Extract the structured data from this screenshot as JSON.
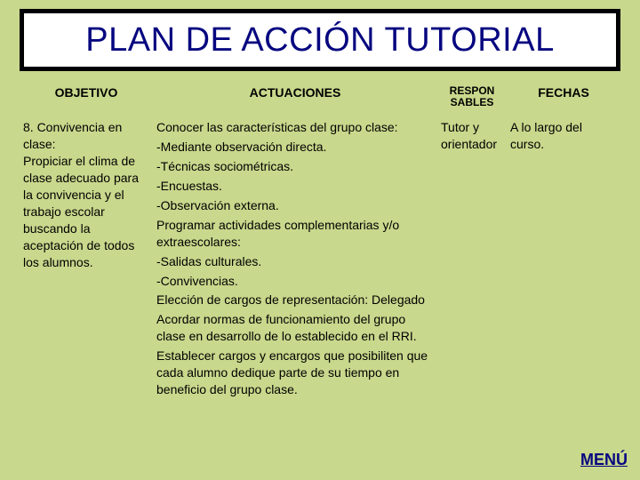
{
  "colors": {
    "background": "#c8d88c",
    "title_color": "#060680",
    "title_border": "#000000",
    "title_bg": "#ffffff",
    "text_color": "#000000",
    "link_color": "#060680"
  },
  "title": "PLAN DE ACCIÓN TUTORIAL",
  "headers": {
    "objetivo": "OBJETIVO",
    "actuaciones": "ACTUACIONES",
    "responsables_l1": "RESPON",
    "responsables_l2": "SABLES",
    "fechas": "FECHAS"
  },
  "row": {
    "objetivo": "8. Convivencia en clase:\nPropiciar el clima de clase adecuado para la convivencia y el trabajo escolar buscando la aceptación de todos los alumnos.",
    "actuaciones": [
      "Conocer las características del grupo clase:",
      "-Mediante observación directa.",
      "-Técnicas sociométricas.",
      "-Encuestas.",
      "-Observación externa.",
      "Programar actividades complementarias y/o extraescolares:",
      "-Salidas culturales.",
      "-Convivencias.",
      "Elección de cargos de representación: Delegado",
      "Acordar normas de funcionamiento del grupo clase en desarrollo de lo establecido en el RRI.",
      "Establecer cargos y encargos que posibiliten que cada alumno dedique parte de su tiempo en beneficio del grupo clase."
    ],
    "responsables": "Tutor y orientador",
    "fechas": "A lo largo del curso."
  },
  "menu_label": "MENÚ"
}
